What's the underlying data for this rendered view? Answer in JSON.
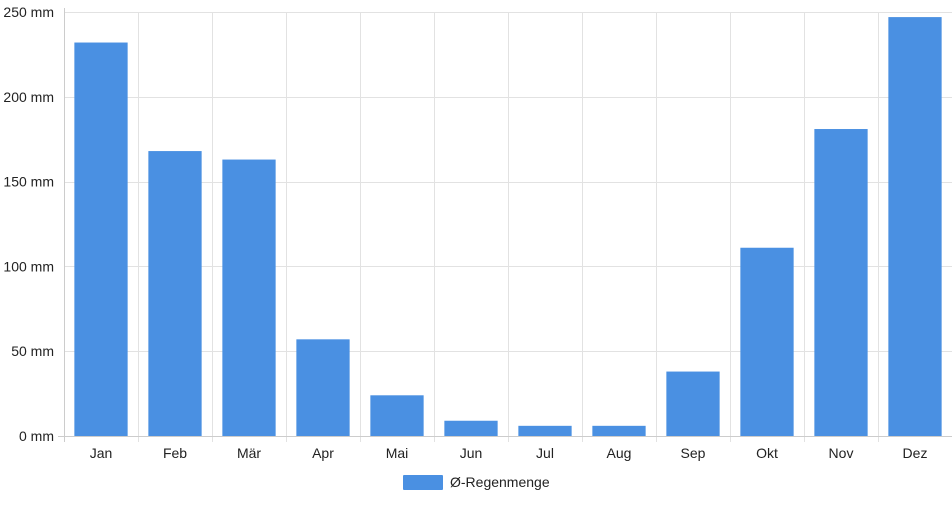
{
  "chart_data": {
    "type": "bar",
    "categories": [
      "Jan",
      "Feb",
      "Mär",
      "Apr",
      "Mai",
      "Jun",
      "Jul",
      "Aug",
      "Sep",
      "Okt",
      "Nov",
      "Dez"
    ],
    "series": [
      {
        "name": "Ø-Regenmenge",
        "values": [
          232,
          168,
          163,
          57,
          24,
          9,
          6,
          6,
          38,
          111,
          181,
          247
        ],
        "color": "#4a90e2"
      }
    ],
    "ylim": [
      0,
      250
    ],
    "yticks": [
      0,
      50,
      100,
      150,
      200,
      250
    ],
    "ytick_labels": [
      "0 mm",
      "50 mm",
      "100 mm",
      "150 mm",
      "200 mm",
      "250 mm"
    ],
    "grid": true,
    "legend_position": "bottom-center"
  }
}
